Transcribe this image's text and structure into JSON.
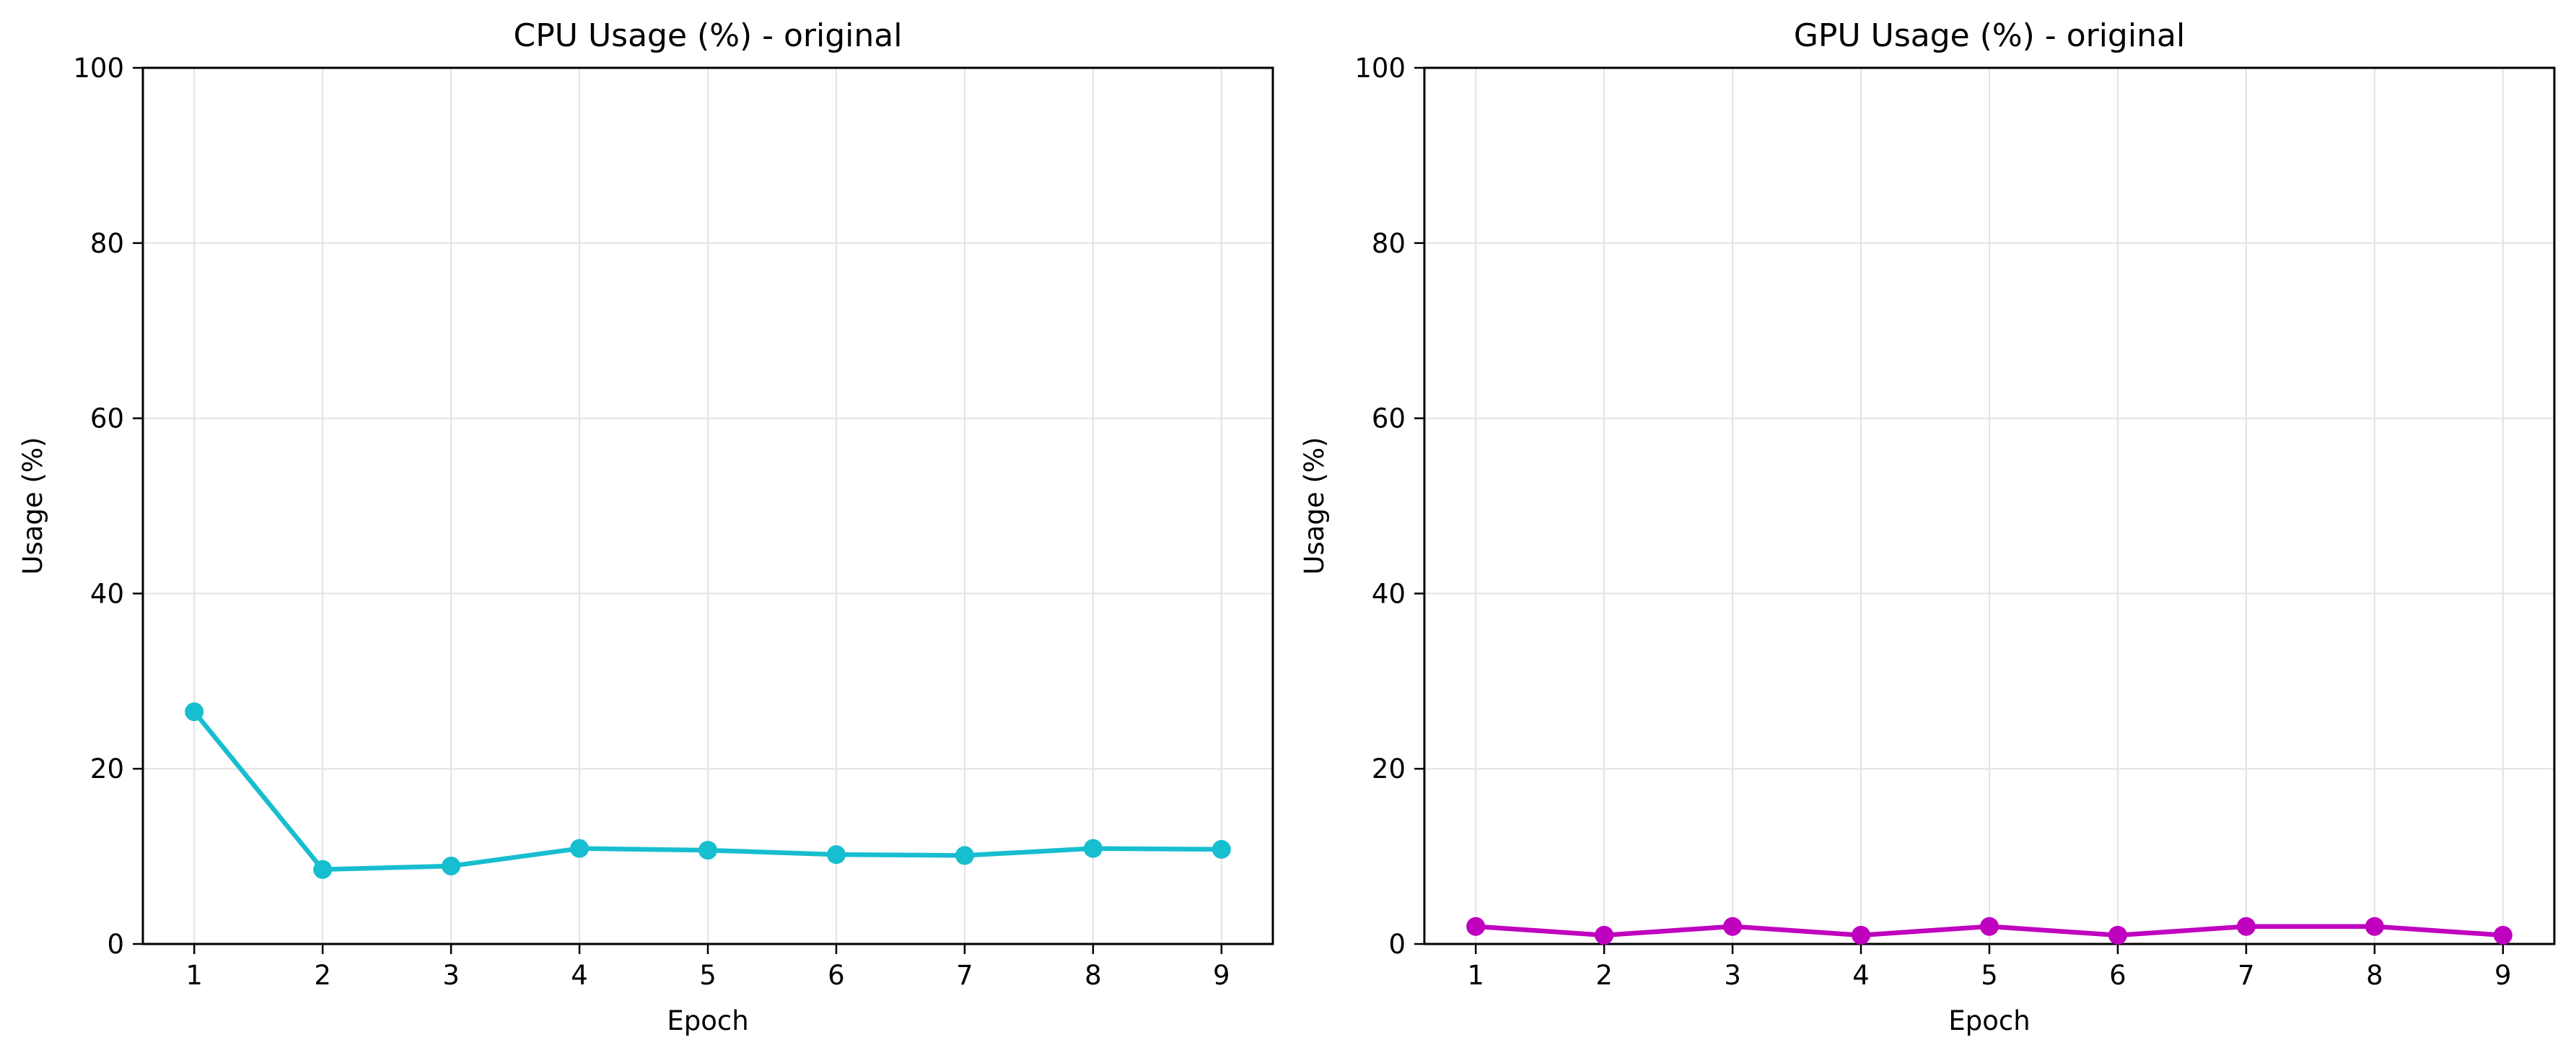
{
  "chart_data": [
    {
      "type": "line",
      "title": "CPU Usage (%) - original",
      "xlabel": "Epoch",
      "ylabel": "Usage (%)",
      "x": [
        1,
        2,
        3,
        4,
        5,
        6,
        7,
        8,
        9
      ],
      "xticks": [
        1,
        2,
        3,
        4,
        5,
        6,
        7,
        8,
        9
      ],
      "xlim": [
        0.6,
        9.4
      ],
      "ylim": [
        0,
        100
      ],
      "yticks": [
        0,
        20,
        40,
        60,
        80,
        100
      ],
      "grid": true,
      "series": [
        {
          "values": [
            26.5,
            8.5,
            8.9,
            10.9,
            10.7,
            10.2,
            10.1,
            10.9,
            10.8
          ],
          "color": "#17becf",
          "marker": "circle"
        }
      ]
    },
    {
      "type": "line",
      "title": "GPU Usage (%) - original",
      "xlabel": "Epoch",
      "ylabel": "Usage (%)",
      "x": [
        1,
        2,
        3,
        4,
        5,
        6,
        7,
        8,
        9
      ],
      "xticks": [
        1,
        2,
        3,
        4,
        5,
        6,
        7,
        8,
        9
      ],
      "xlim": [
        0.6,
        9.4
      ],
      "ylim": [
        0,
        100
      ],
      "yticks": [
        0,
        20,
        40,
        60,
        80,
        100
      ],
      "grid": true,
      "series": [
        {
          "values": [
            2,
            1,
            2,
            1,
            2,
            1,
            2,
            2,
            1
          ],
          "color": "#bf00bf",
          "marker": "circle"
        }
      ]
    }
  ]
}
